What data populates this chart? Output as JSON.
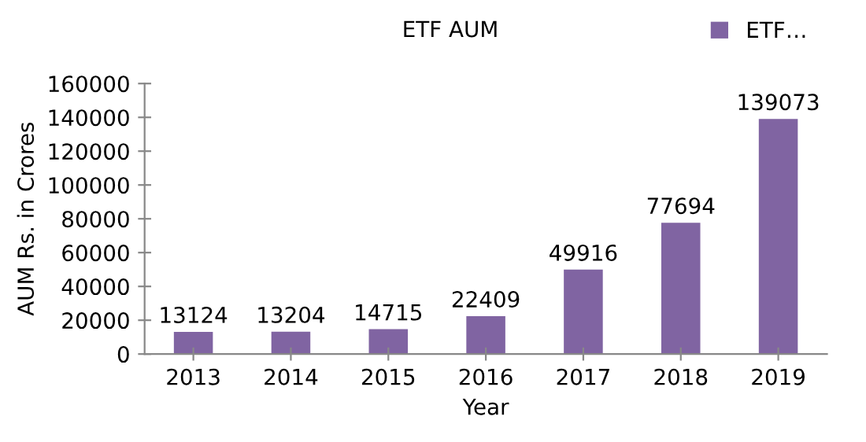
{
  "chart_data": {
    "type": "bar",
    "title": "ETF AUM",
    "xlabel": "Year",
    "ylabel": "AUM Rs. in Crores",
    "categories": [
      "2013",
      "2014",
      "2015",
      "2016",
      "2017",
      "2018",
      "2019"
    ],
    "series": [
      {
        "name": "ETF…",
        "color": "#8064a2",
        "values": [
          13124,
          13204,
          14715,
          22409,
          49916,
          77694,
          139073
        ]
      }
    ],
    "ylim": [
      0,
      160000
    ],
    "yticks": [
      0,
      20000,
      40000,
      60000,
      80000,
      100000,
      120000,
      140000,
      160000
    ],
    "data_labels": true,
    "grid": false,
    "legend": "top right"
  }
}
